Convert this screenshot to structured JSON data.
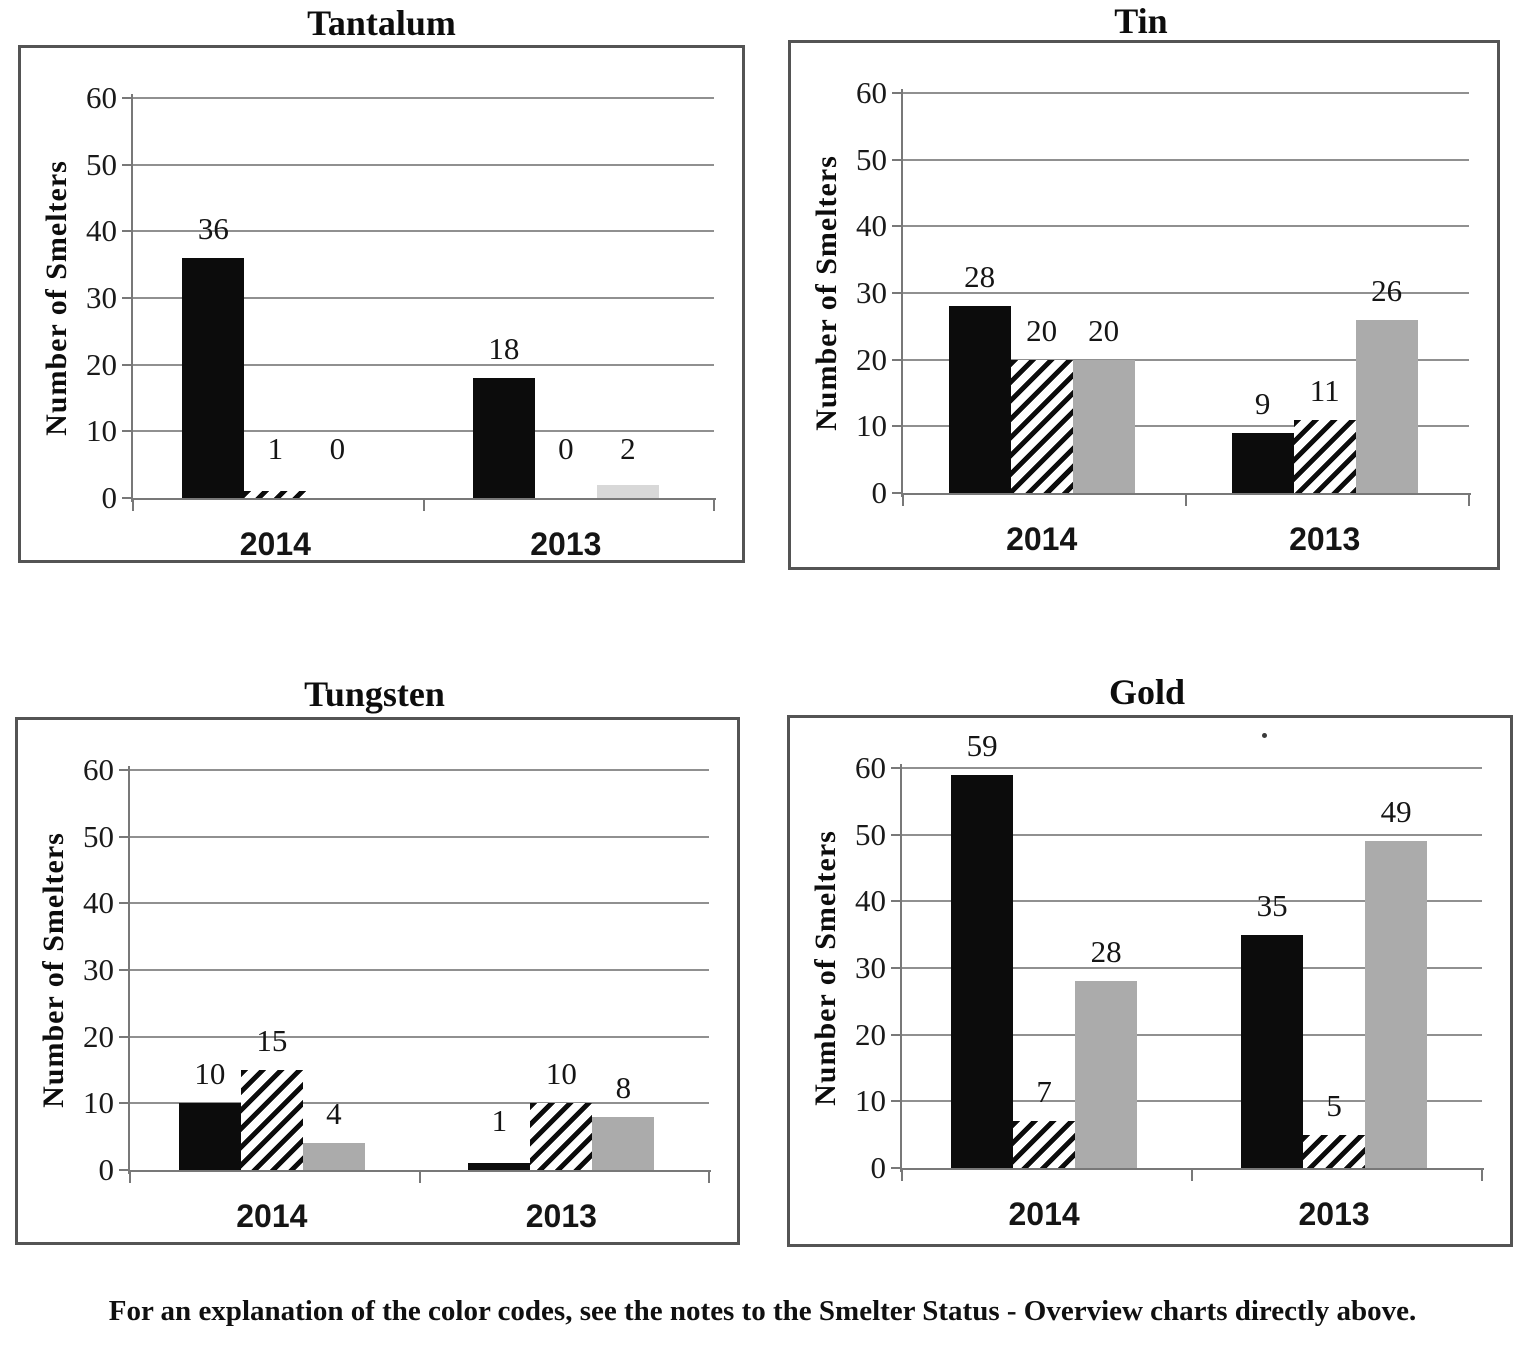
{
  "caption": "For an explanation of the color codes, see the notes to the Smelter Status - Overview charts directly above.",
  "colors": {
    "black_bar": "#0c0c0c",
    "gray_bar": "#ababab",
    "gray_bar_light": "#d8d8d8",
    "hatch_fg": "#0c0c0c",
    "hatch_bg": "#ffffff",
    "gridline": "#909090",
    "axis": "#787878",
    "panel_border": "#545454",
    "text": "#111111"
  },
  "chart_data": [
    {
      "type": "bar",
      "title": "Tantalum",
      "ylabel": "Number of Smelters",
      "xlabel": "",
      "ylim": [
        0,
        60
      ],
      "yticks": [
        0,
        10,
        20,
        30,
        40,
        50,
        60
      ],
      "grid": true,
      "legend": "none",
      "categories": [
        "2014",
        "2013"
      ],
      "bar_styles": [
        "solid-black",
        "diagonal-hatch",
        "solid-gray"
      ],
      "gray_hex": "#d8d8d8",
      "series": [
        {
          "name": "black",
          "values": [
            36,
            18
          ]
        },
        {
          "name": "hatched",
          "values": [
            1,
            0
          ]
        },
        {
          "name": "gray",
          "values": [
            0,
            2
          ]
        }
      ]
    },
    {
      "type": "bar",
      "title": "Tin",
      "ylabel": "Number of Smelters",
      "xlabel": "",
      "ylim": [
        0,
        60
      ],
      "yticks": [
        0,
        10,
        20,
        30,
        40,
        50,
        60
      ],
      "grid": true,
      "legend": "none",
      "categories": [
        "2014",
        "2013"
      ],
      "bar_styles": [
        "solid-black",
        "diagonal-hatch",
        "solid-gray"
      ],
      "gray_hex": "#ababab",
      "series": [
        {
          "name": "black",
          "values": [
            28,
            9
          ]
        },
        {
          "name": "hatched",
          "values": [
            20,
            11
          ]
        },
        {
          "name": "gray",
          "values": [
            20,
            26
          ]
        }
      ]
    },
    {
      "type": "bar",
      "title": "Tungsten",
      "ylabel": "Number of Smelters",
      "xlabel": "",
      "ylim": [
        0,
        60
      ],
      "yticks": [
        0,
        10,
        20,
        30,
        40,
        50,
        60
      ],
      "grid": true,
      "legend": "none",
      "categories": [
        "2014",
        "2013"
      ],
      "bar_styles": [
        "solid-black",
        "diagonal-hatch",
        "solid-gray"
      ],
      "gray_hex": "#ababab",
      "series": [
        {
          "name": "black",
          "values": [
            10,
            1
          ]
        },
        {
          "name": "hatched",
          "values": [
            15,
            10
          ]
        },
        {
          "name": "gray",
          "values": [
            4,
            8
          ]
        }
      ]
    },
    {
      "type": "bar",
      "title": "Gold",
      "ylabel": "Number of Smelters",
      "xlabel": "",
      "ylim": [
        0,
        60
      ],
      "yticks": [
        0,
        10,
        20,
        30,
        40,
        50,
        60
      ],
      "grid": true,
      "legend": "none",
      "categories": [
        "2014",
        "2013"
      ],
      "bar_styles": [
        "solid-black",
        "diagonal-hatch",
        "solid-gray"
      ],
      "gray_hex": "#ababab",
      "series": [
        {
          "name": "black",
          "values": [
            59,
            35
          ]
        },
        {
          "name": "hatched",
          "values": [
            7,
            5
          ]
        },
        {
          "name": "gray",
          "values": [
            28,
            49
          ]
        }
      ]
    }
  ]
}
